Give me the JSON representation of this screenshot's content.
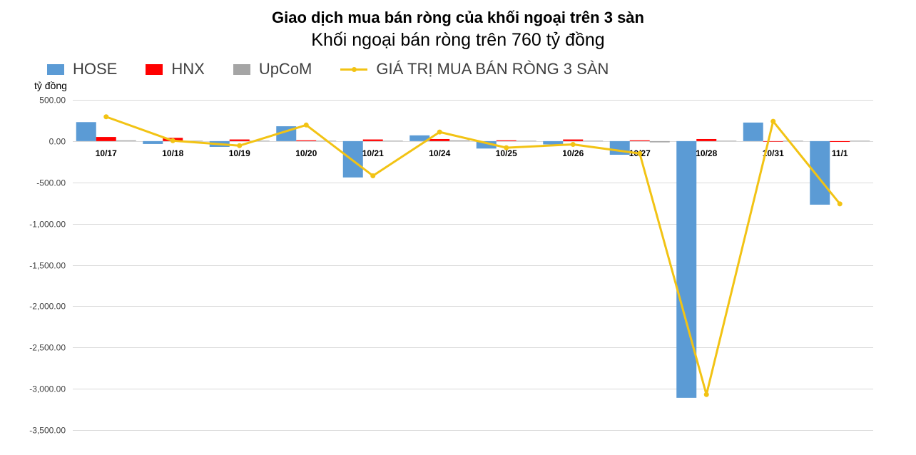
{
  "title": "Giao dịch mua bán ròng của khối ngoại trên 3 sàn",
  "subtitle": "Khối ngoại bán ròng trên 760 tỷ đồng",
  "unit_label": "tỷ đồng",
  "colors": {
    "HOSE": "#5B9BD5",
    "HNX": "#FF0000",
    "UpCoM": "#A5A5A5",
    "total": "#F2C314",
    "grid": "#D9D9D9",
    "text": "#404040"
  },
  "legend": [
    {
      "key": "HOSE",
      "label": "HOSE",
      "kind": "bar"
    },
    {
      "key": "HNX",
      "label": "HNX",
      "kind": "bar"
    },
    {
      "key": "UpCoM",
      "label": "UpCoM",
      "kind": "bar"
    },
    {
      "key": "total",
      "label": "GIÁ TRỊ MUA BÁN RÒNG 3 SÀN",
      "kind": "line"
    }
  ],
  "chart_data": {
    "type": "bar",
    "categories": [
      "10/17",
      "10/18",
      "10/19",
      "10/20",
      "10/21",
      "10/24",
      "10/25",
      "10/26",
      "10/27",
      "10/28",
      "10/31",
      "11/1"
    ],
    "series": [
      {
        "name": "HOSE",
        "type": "bar",
        "values": [
          230,
          -35,
          -70,
          180,
          -440,
          70,
          -90,
          -40,
          -165,
          -3110,
          225,
          -770
        ]
      },
      {
        "name": "HNX",
        "type": "bar",
        "values": [
          50,
          40,
          20,
          10,
          20,
          25,
          10,
          20,
          10,
          25,
          -5,
          -10
        ]
      },
      {
        "name": "UpCoM",
        "type": "bar",
        "values": [
          10,
          5,
          5,
          5,
          5,
          10,
          5,
          5,
          -15,
          5,
          5,
          5
        ]
      },
      {
        "name": "GIÁ TRỊ MUA BÁN RÒNG 3 SÀN",
        "type": "line",
        "values": [
          295,
          5,
          -55,
          195,
          -420,
          110,
          -80,
          -40,
          -150,
          -3070,
          240,
          -760
        ]
      }
    ],
    "y_ticks": [
      500,
      0,
      -500,
      -1000,
      -1500,
      -2000,
      -2500,
      -3000,
      -3500
    ],
    "y_tick_labels": [
      "500.00",
      "0.00",
      "-500.00",
      "-1,000.00",
      "-1,500.00",
      "-2,000.00",
      "-2,500.00",
      "-3,000.00",
      "-3,500.00"
    ],
    "ylim": [
      -3500,
      500
    ],
    "grid": true,
    "legend_position": "top-left"
  }
}
